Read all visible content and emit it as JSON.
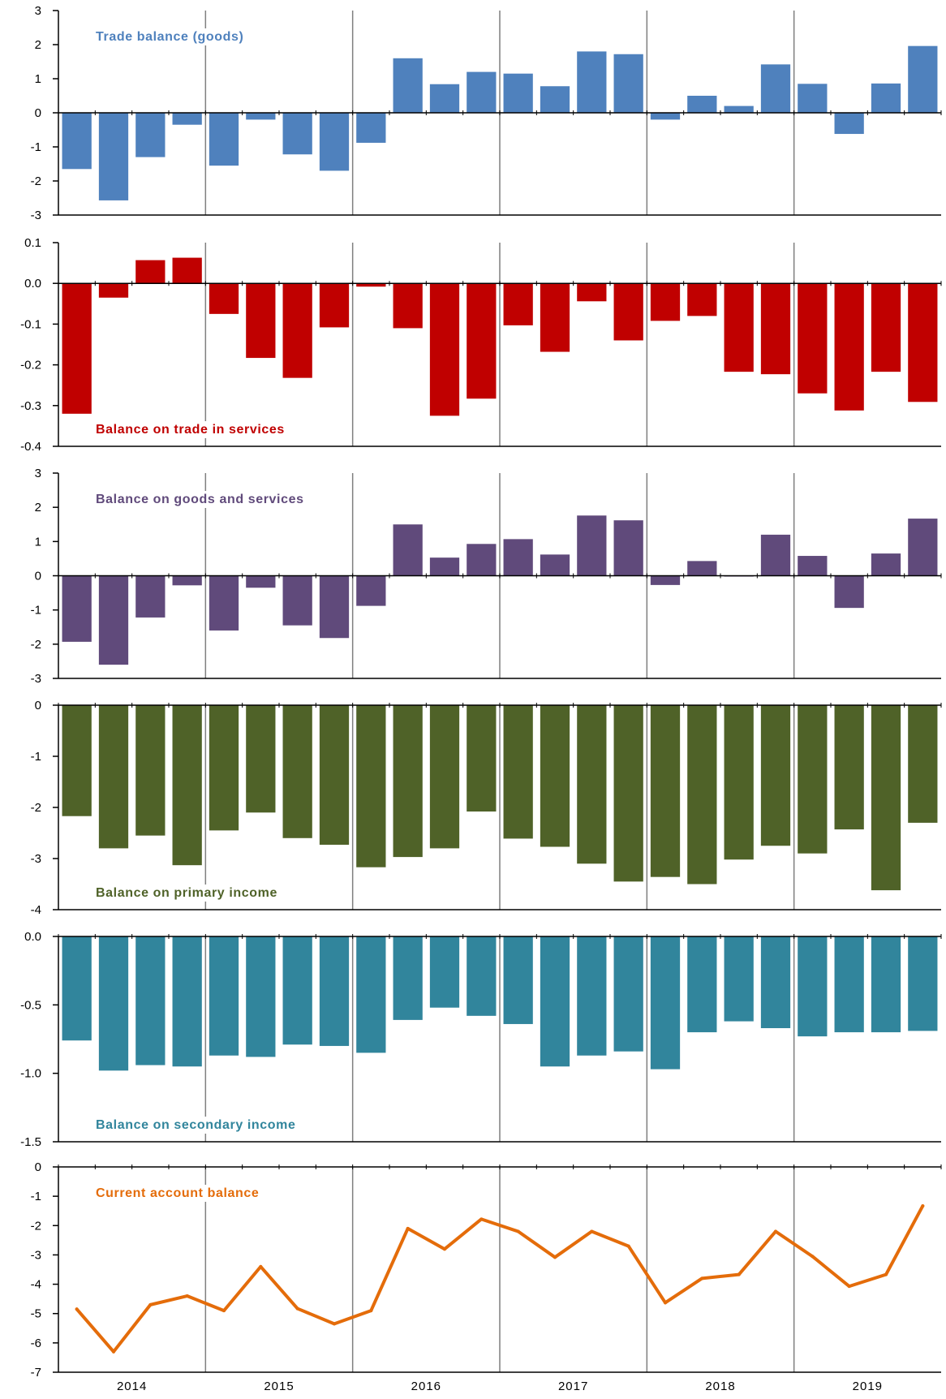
{
  "chart_data": [
    {
      "type": "bar",
      "title": "Trade balance (goods)",
      "color": "#4F81BD",
      "ylim": [
        -3,
        3
      ],
      "yticks": [
        "3",
        "2",
        "1",
        "0",
        "-1",
        "-2",
        "-3"
      ],
      "ytick_values": [
        3,
        2,
        1,
        0,
        -1,
        -2,
        -3
      ],
      "title_position": "top-left",
      "values": [
        -1.65,
        -2.57,
        -1.3,
        -0.35,
        -1.55,
        -0.2,
        -1.22,
        -1.7,
        -0.88,
        1.6,
        0.84,
        1.2,
        1.15,
        0.78,
        1.8,
        1.72,
        -0.2,
        0.5,
        0.2,
        1.42,
        0.85,
        -0.62,
        0.86,
        1.96
      ]
    },
    {
      "type": "bar",
      "title": "Balance on trade in services",
      "color": "#C00000",
      "ylim": [
        -0.4,
        0.1
      ],
      "yticks": [
        "0.1",
        "0.0",
        "-0.1",
        "-0.2",
        "-0.3",
        "-0.4"
      ],
      "ytick_values": [
        0.1,
        0.0,
        -0.1,
        -0.2,
        -0.3,
        -0.4
      ],
      "title_position": "bottom-left",
      "values": [
        -0.32,
        -0.035,
        0.057,
        0.063,
        -0.075,
        -0.183,
        -0.232,
        -0.108,
        -0.008,
        -0.11,
        -0.325,
        -0.283,
        -0.103,
        -0.168,
        -0.044,
        -0.14,
        -0.092,
        -0.08,
        -0.217,
        -0.223,
        -0.27,
        -0.312,
        -0.217,
        -0.291
      ]
    },
    {
      "type": "bar",
      "title": "Balance on goods  and services",
      "color": "#604A7B",
      "ylim": [
        -3,
        3
      ],
      "yticks": [
        "3",
        "2",
        "1",
        "0",
        "-1",
        "-2",
        "-3"
      ],
      "ytick_values": [
        3,
        2,
        1,
        0,
        -1,
        -2,
        -3
      ],
      "title_position": "top-left",
      "values": [
        -1.93,
        -2.6,
        -1.22,
        -0.28,
        -1.6,
        -0.35,
        -1.45,
        -1.82,
        -0.88,
        1.5,
        0.53,
        0.93,
        1.07,
        0.62,
        1.76,
        1.62,
        -0.27,
        0.43,
        -0.02,
        1.2,
        0.58,
        -0.94,
        0.65,
        1.67
      ]
    },
    {
      "type": "bar",
      "title": "Balance on primary income",
      "color": "#4F6228",
      "ylim": [
        -4,
        0
      ],
      "yticks": [
        "0",
        "-1",
        "-2",
        "-3",
        "-4"
      ],
      "ytick_values": [
        0,
        -1,
        -2,
        -3,
        -4
      ],
      "title_position": "bottom-left",
      "values": [
        -2.17,
        -2.8,
        -2.55,
        -3.13,
        -2.45,
        -2.1,
        -2.6,
        -2.73,
        -3.17,
        -2.97,
        -2.8,
        -2.08,
        -2.61,
        -2.77,
        -3.1,
        -3.45,
        -3.36,
        -3.5,
        -3.02,
        -2.75,
        -2.9,
        -2.43,
        -3.62,
        -2.3
      ]
    },
    {
      "type": "bar",
      "title": "Balance on secondary income",
      "color": "#31859C",
      "ylim": [
        -1.5,
        0
      ],
      "yticks": [
        "0.0",
        "-0.5",
        "-1.0",
        "-1.5"
      ],
      "ytick_values": [
        0,
        -0.5,
        -1.0,
        -1.5
      ],
      "title_position": "bottom-left",
      "values": [
        -0.76,
        -0.98,
        -0.94,
        -0.95,
        -0.87,
        -0.88,
        -0.79,
        -0.8,
        -0.85,
        -0.61,
        -0.52,
        -0.58,
        -0.64,
        -0.95,
        -0.87,
        -0.84,
        -0.97,
        -0.7,
        -0.62,
        -0.67,
        -0.73,
        -0.7,
        -0.7,
        -0.69
      ]
    },
    {
      "type": "line",
      "title": "Current account balance",
      "color": "#E46C0A",
      "ylim": [
        -7,
        0
      ],
      "yticks": [
        "0",
        "-1",
        "-2",
        "-3",
        "-4",
        "-5",
        "-6",
        "-7"
      ],
      "ytick_values": [
        0,
        -1,
        -2,
        -3,
        -4,
        -5,
        -6,
        -7
      ],
      "title_position": "top-left",
      "values": [
        -4.85,
        -6.3,
        -4.7,
        -4.4,
        -4.9,
        -3.4,
        -4.83,
        -5.35,
        -4.9,
        -2.1,
        -2.8,
        -1.78,
        -2.2,
        -3.08,
        -2.2,
        -2.7,
        -4.63,
        -3.8,
        -3.67,
        -2.2,
        -3.05,
        -4.07,
        -3.67,
        -1.33
      ]
    }
  ],
  "x_axis": {
    "years": [
      "2014",
      "2015",
      "2016",
      "2017",
      "2018",
      "2019"
    ],
    "quarters_per_year": 4
  }
}
